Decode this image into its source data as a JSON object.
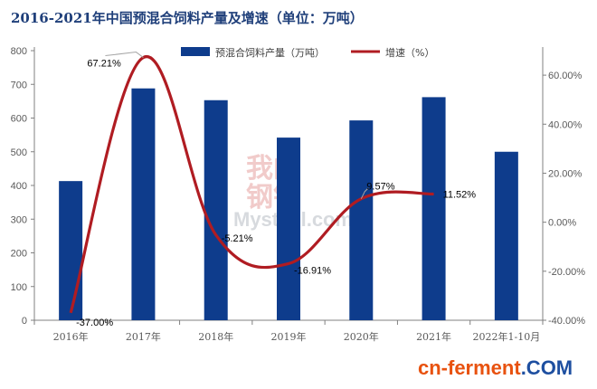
{
  "chart_data": {
    "type": "bar",
    "title": "2016-2021年中国预混合饲料产量及增速（单位：万吨）",
    "categories": [
      "2016年",
      "2017年",
      "2018年",
      "2019年",
      "2020年",
      "2021年",
      "2022年1-10月"
    ],
    "series": [
      {
        "name": "预混合饲料产量（万吨）",
        "type": "bar",
        "axis": "left",
        "values": [
          413,
          688,
          653,
          542,
          593,
          662,
          500
        ]
      },
      {
        "name": "增速（%）",
        "type": "line",
        "axis": "right",
        "values": [
          -37.0,
          67.21,
          -5.21,
          -16.91,
          9.57,
          11.52,
          null
        ],
        "labels": [
          "-37.00%",
          "67.21%",
          "-5.21%",
          "-16.91%",
          "9.57%",
          "11.52%",
          ""
        ]
      }
    ],
    "y_left": {
      "min": 0,
      "max": 800,
      "ticks": [
        0,
        100,
        200,
        300,
        400,
        500,
        600,
        700,
        800
      ]
    },
    "y_right": {
      "min": -40,
      "max": 70,
      "ticks": [
        -40,
        -20,
        0,
        20,
        40,
        60
      ],
      "tick_labels": [
        "-40.00%",
        "-20.00%",
        "0.00%",
        "20.00%",
        "40.00%",
        "60.00%"
      ]
    },
    "grid": false,
    "legend_position": "top",
    "colors": {
      "bar": "#0e3c8c",
      "line": "#b01c22",
      "axis": "#808080"
    }
  },
  "watermark": {
    "line1": "我的",
    "line2": "钢铁",
    "line3": "Mysteel.com"
  },
  "footer_logo": {
    "part1": "cn-ferment",
    "part2": ".COM",
    "color1": "#e8520f",
    "color2": "#1e4fa0"
  }
}
